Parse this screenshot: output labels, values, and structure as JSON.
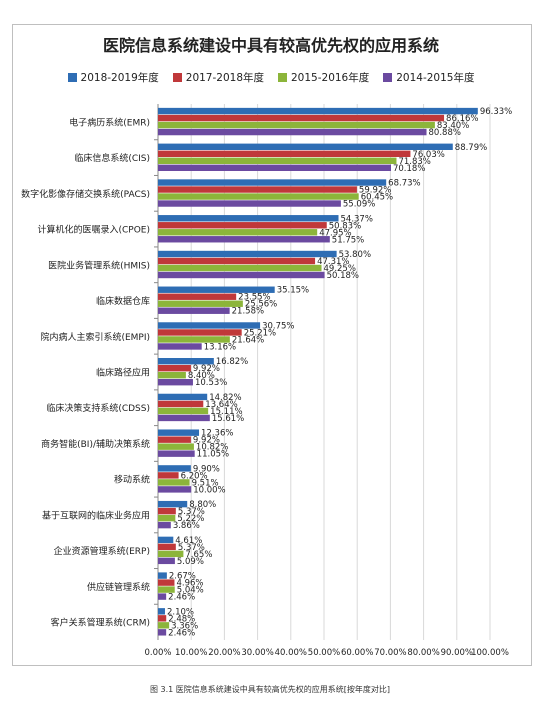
{
  "chart_data": {
    "type": "bar",
    "orientation": "horizontal",
    "title": "医院信息系统建设中具有较高优先权的应用系统",
    "xlabel": "",
    "ylabel": "",
    "xlim": [
      0,
      100
    ],
    "x_ticks": [
      "0.00%",
      "10.00%",
      "20.00%",
      "30.00%",
      "40.00%",
      "50.00%",
      "60.00%",
      "70.00%",
      "80.00%",
      "90.00%",
      "100.00%"
    ],
    "legend_position": "top",
    "grid": true,
    "categories": [
      "电子病历系统(EMR)",
      "临床信息系统(CIS)",
      "数字化影像存储交换系统(PACS)",
      "计算机化的医嘱录入(CPOE)",
      "医院业务管理系统(HMIS)",
      "临床数据仓库",
      "院内病人主索引系统(EMPI)",
      "临床路径应用",
      "临床决策支持系统(CDSS)",
      "商务智能(BI)/辅助决策系统",
      "移动系统",
      "基于互联网的临床业务应用",
      "企业资源管理系统(ERP)",
      "供应链管理系统",
      "客户关系管理系统(CRM)"
    ],
    "series": [
      {
        "name": "2018-2019年度",
        "color": "#2e6db4",
        "values": [
          96.33,
          88.79,
          68.73,
          54.37,
          53.8,
          35.15,
          30.75,
          16.82,
          14.82,
          12.36,
          9.9,
          8.8,
          4.61,
          2.67,
          2.1
        ],
        "labels": [
          "96.33%",
          "88.79%",
          "68.73%",
          "54.37%",
          "53.80%",
          "35.15%",
          "30.75%",
          "16.82%",
          "14.82%",
          "12.36%",
          "9.90%",
          "8.80%",
          "4.61%",
          "2.67%",
          "2.10%"
        ]
      },
      {
        "name": "2017-2018年度",
        "color": "#c0383a",
        "values": [
          86.16,
          76.03,
          59.92,
          50.83,
          47.31,
          23.55,
          25.21,
          9.92,
          13.64,
          9.92,
          6.2,
          5.37,
          5.37,
          4.96,
          2.48
        ],
        "labels": [
          "86.16%",
          "76.03%",
          "59.92%",
          "50.83%",
          "47.31%",
          "23.55%",
          "25.21%",
          "9.92%",
          "13.64%",
          "9.92%",
          "6.20%",
          "5.37%",
          "5.37%",
          "4.96%",
          "2.48%"
        ]
      },
      {
        "name": "2015-2016年度",
        "color": "#8cb53a",
        "values": [
          83.4,
          71.83,
          60.45,
          47.95,
          49.25,
          25.56,
          21.64,
          8.4,
          15.11,
          10.82,
          9.51,
          5.22,
          7.65,
          5.04,
          3.36
        ],
        "labels": [
          "83.40%",
          "71.83%",
          "60.45%",
          "47.95%",
          "49.25%",
          "25.56%",
          "21.64%",
          "8.40%",
          "15.11%",
          "10.82%",
          "9.51%",
          "5.22%",
          "7.65%",
          "5.04%",
          "3.36%"
        ]
      },
      {
        "name": "2014-2015年度",
        "color": "#6b4aa0",
        "values": [
          80.88,
          70.18,
          55.09,
          51.75,
          50.18,
          21.58,
          13.16,
          10.53,
          15.61,
          11.05,
          10.0,
          3.86,
          5.09,
          2.46,
          2.46
        ],
        "labels": [
          "80.88%",
          "70.18%",
          "55.09%",
          "51.75%",
          "50.18%",
          "21.58%",
          "13.16%",
          "10.53%",
          "15.61%",
          "11.05%",
          "10.00%",
          "3.86%",
          "5.09%",
          "2.46%",
          "2.46%"
        ]
      }
    ]
  },
  "caption": "图 3.1  医院信息系统建设中具有较高优先权的应用系统[按年度对比]"
}
